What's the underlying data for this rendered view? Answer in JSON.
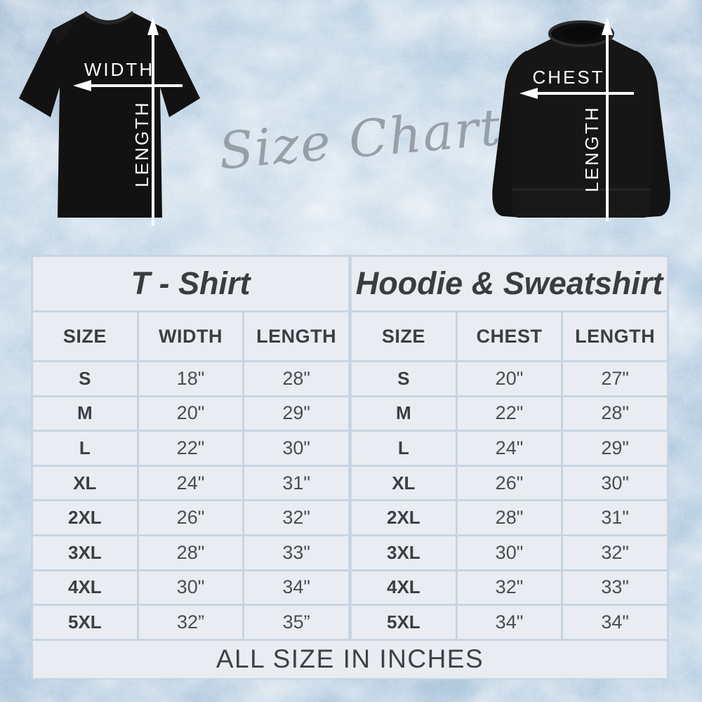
{
  "script_title": "Size Chart",
  "diagrams": {
    "tshirt": {
      "horizontal_label": "WIDTH",
      "vertical_label": "LENGTH"
    },
    "sweatshirt": {
      "horizontal_label": "CHEST",
      "vertical_label": "LENGTH"
    }
  },
  "chart_data": [
    {
      "type": "table",
      "title": "T - Shirt",
      "columns": [
        "SIZE",
        "WIDTH",
        "LENGTH"
      ],
      "rows": [
        [
          "S",
          "18\"",
          "28\""
        ],
        [
          "M",
          "20\"",
          "29\""
        ],
        [
          "L",
          "22\"",
          "30\""
        ],
        [
          "XL",
          "24\"",
          "31\""
        ],
        [
          "2XL",
          "26\"",
          "32\""
        ],
        [
          "3XL",
          "28\"",
          "33\""
        ],
        [
          "4XL",
          "30\"",
          "34\""
        ],
        [
          "5XL",
          "32”",
          "35”"
        ]
      ]
    },
    {
      "type": "table",
      "title": "Hoodie & Sweatshirt",
      "columns": [
        "SIZE",
        "CHEST",
        "LENGTH"
      ],
      "rows": [
        [
          "S",
          "20\"",
          "27\""
        ],
        [
          "M",
          "22\"",
          "28\""
        ],
        [
          "L",
          "24\"",
          "29\""
        ],
        [
          "XL",
          "26\"",
          "30\""
        ],
        [
          "2XL",
          "28\"",
          "31\""
        ],
        [
          "3XL",
          "30\"",
          "32\""
        ],
        [
          "4XL",
          "32\"",
          "33\""
        ],
        [
          "5XL",
          "34\"",
          "34\""
        ]
      ]
    }
  ],
  "footer": "ALL SIZE IN INCHES",
  "colors": {
    "background_blue": "#b4cce0",
    "cell": "#e9edf2",
    "divider": "#c7d5e2",
    "table_text": "#3b3e42",
    "garment_black": "#121212",
    "arrow_white": "#ffffff",
    "script_gray": "#97a0a9"
  }
}
